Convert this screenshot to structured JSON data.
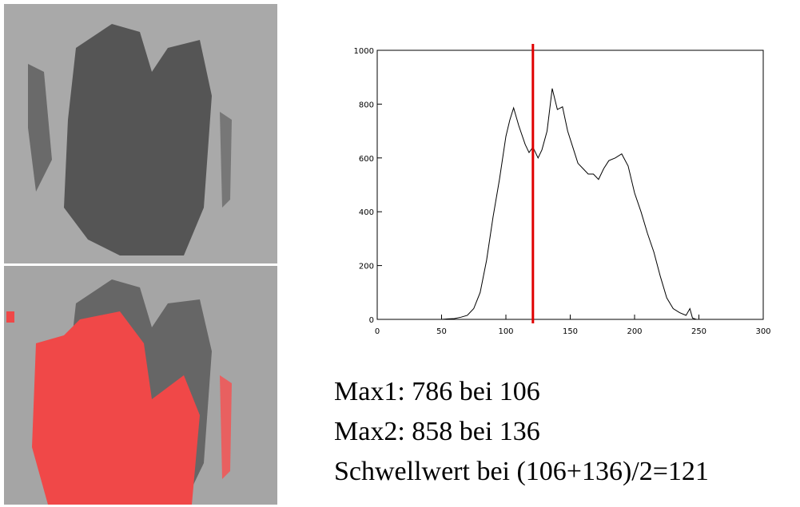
{
  "chart_data": {
    "type": "line",
    "x": [
      50,
      55,
      60,
      65,
      70,
      75,
      80,
      85,
      90,
      95,
      100,
      103,
      106,
      110,
      115,
      118,
      121,
      125,
      128,
      132,
      136,
      140,
      144,
      148,
      152,
      156,
      160,
      164,
      168,
      172,
      176,
      180,
      185,
      190,
      195,
      200,
      205,
      210,
      215,
      220,
      225,
      230,
      235,
      240,
      243,
      245,
      248
    ],
    "values": [
      0,
      2,
      3,
      8,
      15,
      40,
      100,
      220,
      380,
      520,
      680,
      740,
      786,
      720,
      650,
      620,
      640,
      600,
      630,
      700,
      858,
      780,
      790,
      700,
      640,
      580,
      560,
      540,
      540,
      520,
      560,
      590,
      600,
      615,
      570,
      470,
      400,
      320,
      250,
      160,
      80,
      40,
      25,
      15,
      40,
      5,
      0
    ],
    "color": "#000000",
    "threshold": {
      "value": 121,
      "color": "#e00000"
    },
    "xlim": [
      0,
      300
    ],
    "xticks": [
      0,
      50,
      100,
      150,
      200,
      250,
      300
    ],
    "ylim": [
      0,
      1000
    ],
    "yticks": [
      0,
      200,
      400,
      600,
      800,
      1000
    ]
  },
  "text_lines": [
    "Max1: 786 bei 106",
    "Max2: 858 bei 136",
    "Schwellwert bei (106+136)/2=121"
  ]
}
